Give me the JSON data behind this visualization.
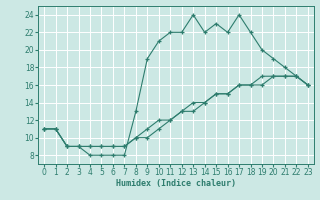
{
  "line1_x": [
    0,
    1,
    2,
    3,
    4,
    5,
    6,
    7,
    8,
    9,
    10,
    11,
    12,
    13,
    14,
    15,
    16,
    17,
    18,
    19,
    20,
    21,
    22,
    23
  ],
  "line1_y": [
    11,
    11,
    9,
    9,
    8,
    8,
    8,
    8,
    13,
    19,
    21,
    22,
    22,
    24,
    22,
    23,
    22,
    24,
    22,
    20,
    19,
    18,
    17,
    16
  ],
  "line2_x": [
    0,
    1,
    2,
    3,
    4,
    5,
    6,
    7,
    8,
    9,
    10,
    11,
    12,
    13,
    14,
    15,
    16,
    17,
    18,
    19,
    20,
    21,
    22,
    23
  ],
  "line2_y": [
    11,
    11,
    9,
    9,
    9,
    9,
    9,
    9,
    10,
    10,
    11,
    12,
    13,
    13,
    14,
    15,
    15,
    16,
    16,
    16,
    17,
    17,
    17,
    16
  ],
  "line3_x": [
    0,
    1,
    2,
    3,
    4,
    5,
    6,
    7,
    8,
    9,
    10,
    11,
    12,
    13,
    14,
    15,
    16,
    17,
    18,
    19,
    20,
    21,
    22,
    23
  ],
  "line3_y": [
    11,
    11,
    9,
    9,
    9,
    9,
    9,
    9,
    10,
    11,
    12,
    12,
    13,
    14,
    14,
    15,
    15,
    16,
    16,
    17,
    17,
    17,
    17,
    16
  ],
  "line_color": "#2e7d6e",
  "bg_color": "#cce8e4",
  "grid_color": "#ffffff",
  "xlabel": "Humidex (Indice chaleur)",
  "xlim": [
    -0.5,
    23.5
  ],
  "ylim": [
    7,
    25
  ],
  "yticks": [
    8,
    10,
    12,
    14,
    16,
    18,
    20,
    22,
    24
  ],
  "xticks": [
    0,
    1,
    2,
    3,
    4,
    5,
    6,
    7,
    8,
    9,
    10,
    11,
    12,
    13,
    14,
    15,
    16,
    17,
    18,
    19,
    20,
    21,
    22,
    23
  ],
  "xlabel_fontsize": 6.0,
  "tick_fontsize": 5.5
}
